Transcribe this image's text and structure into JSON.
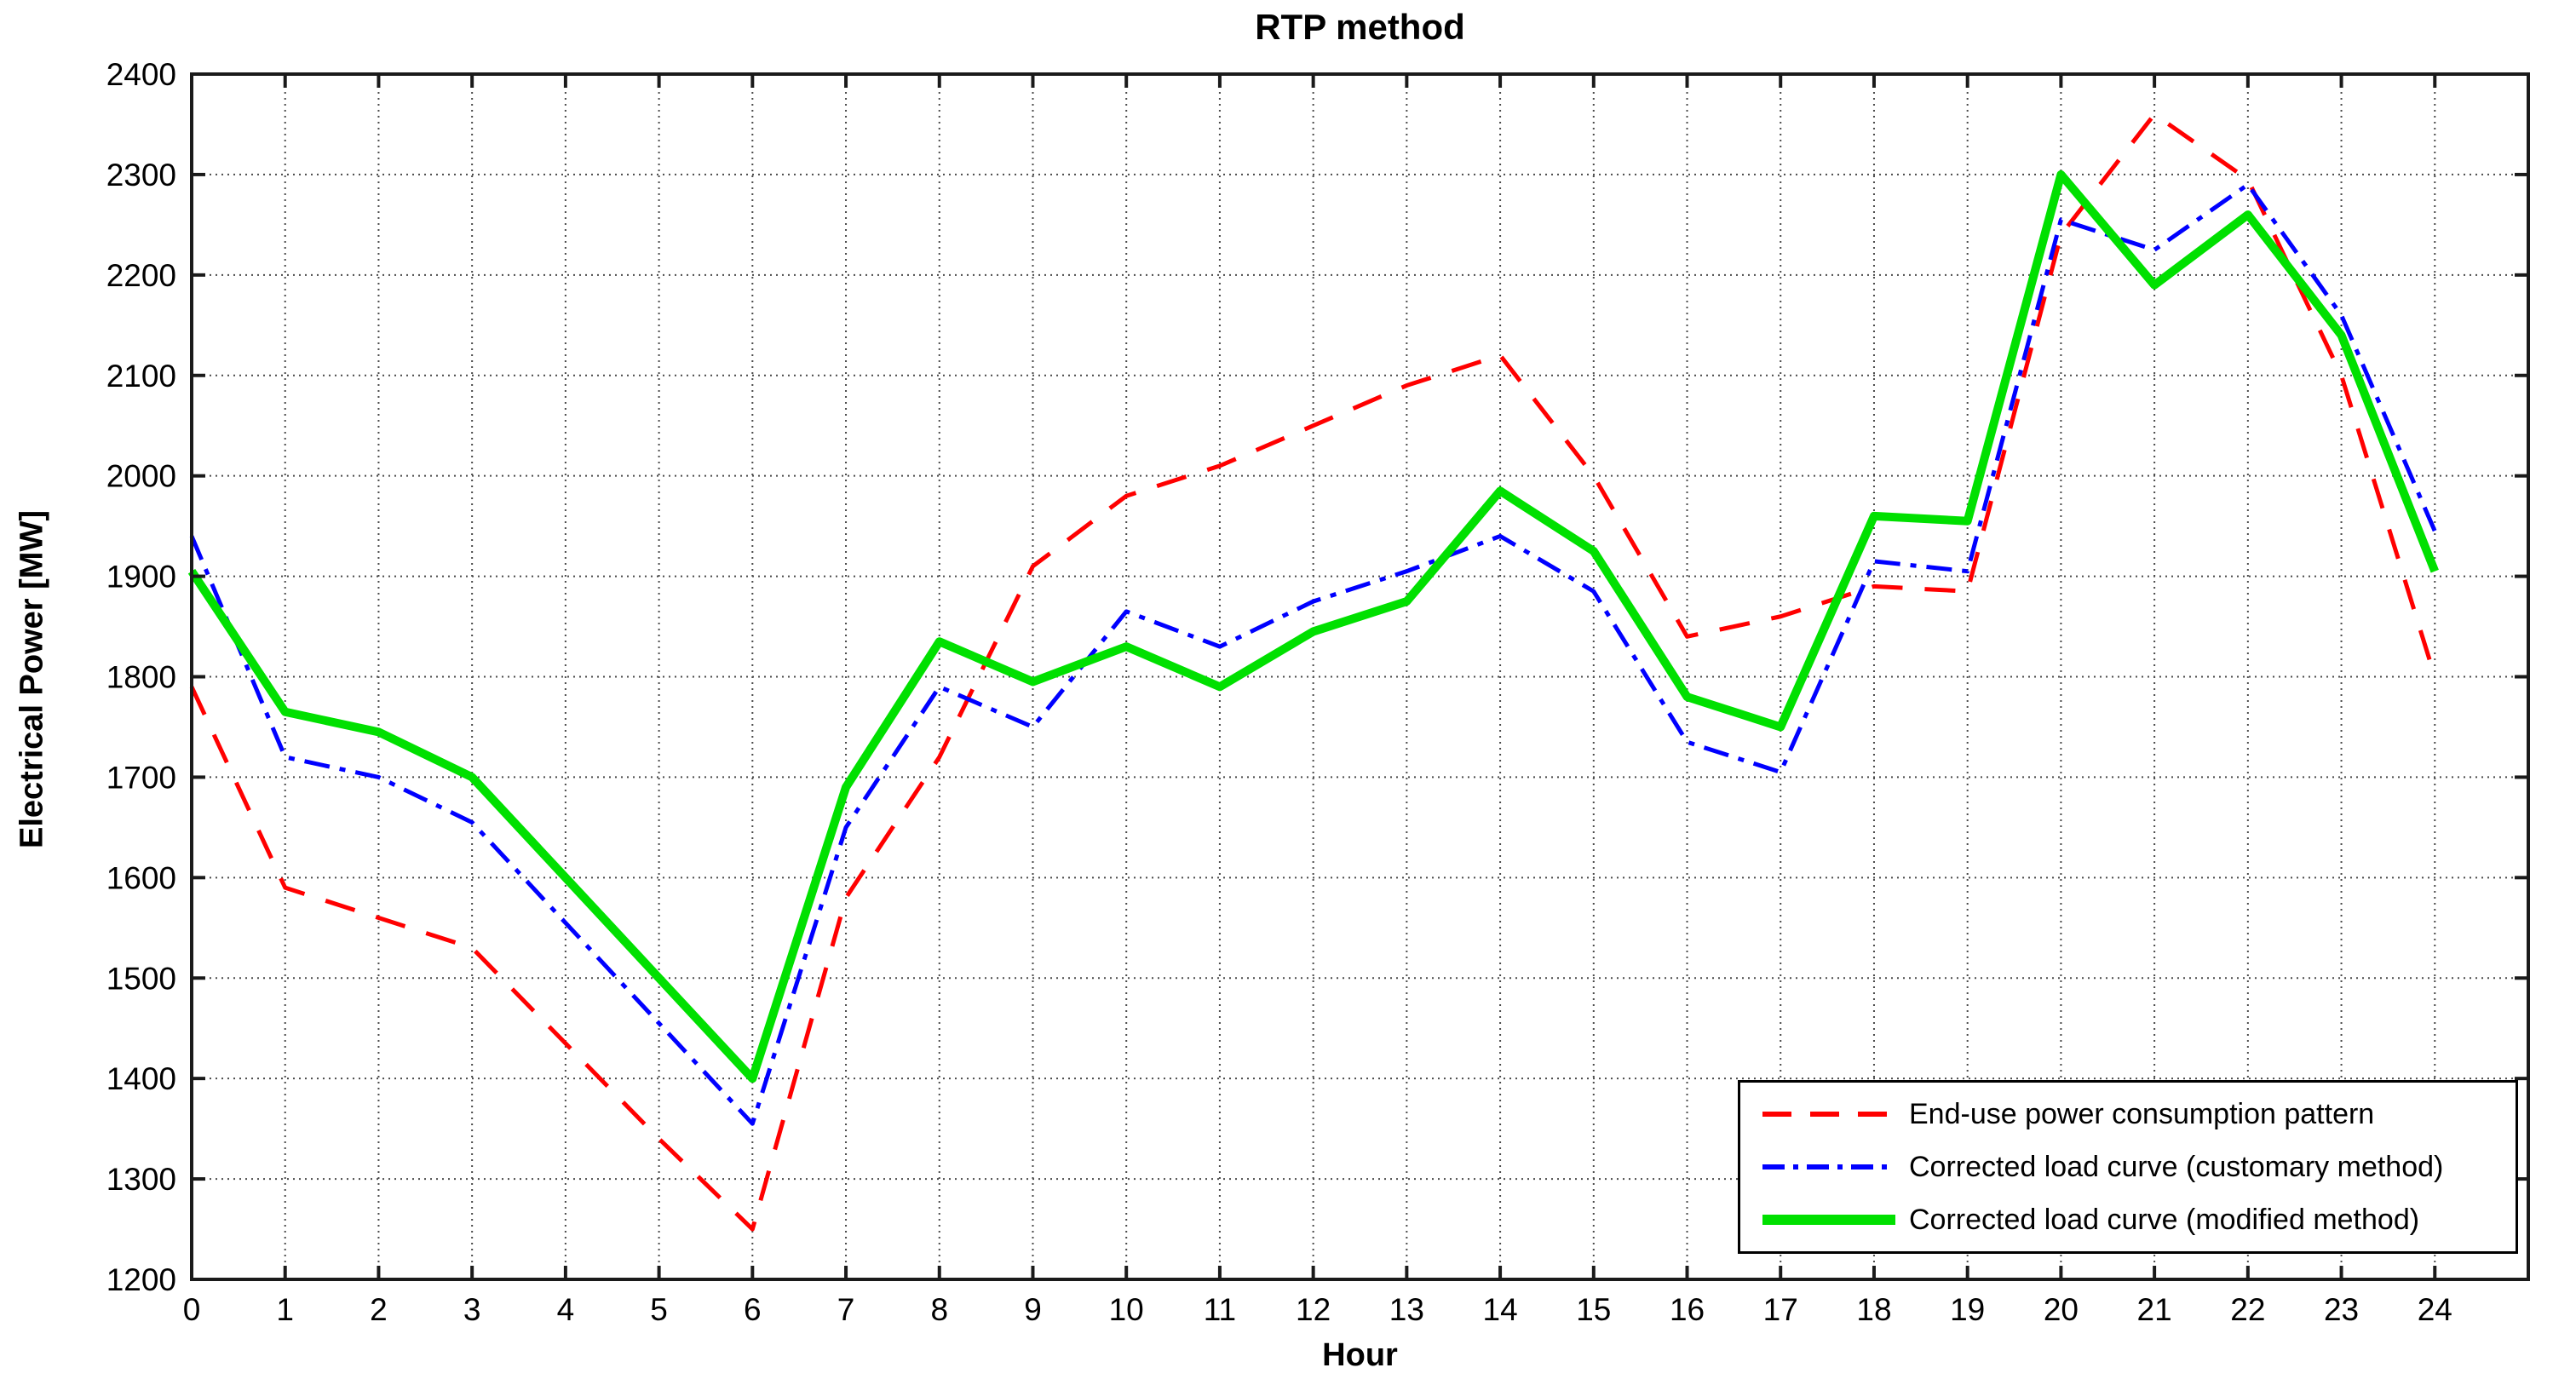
{
  "chart_data": {
    "type": "line",
    "title": "RTP method",
    "xlabel": "Hour",
    "ylabel": "Electrical Power [MW]",
    "xlim": [
      0,
      25
    ],
    "ylim": [
      1200,
      2400
    ],
    "xticks": [
      0,
      1,
      2,
      3,
      4,
      5,
      6,
      7,
      8,
      9,
      10,
      11,
      12,
      13,
      14,
      15,
      16,
      17,
      18,
      19,
      20,
      21,
      22,
      23,
      24
    ],
    "yticks": [
      1200,
      1300,
      1400,
      1500,
      1600,
      1700,
      1800,
      1900,
      2000,
      2100,
      2200,
      2300,
      2400
    ],
    "grid": "dotted",
    "legend_position": "bottom-right",
    "x": [
      0,
      1,
      2,
      3,
      4,
      5,
      6,
      7,
      8,
      9,
      10,
      11,
      12,
      13,
      14,
      15,
      16,
      17,
      18,
      19,
      20,
      21,
      22,
      23,
      24
    ],
    "series": [
      {
        "name": "End-use power consumption pattern",
        "color": "#FF0000",
        "style": "dashed",
        "width": 5,
        "dash": "36 26",
        "legend_dash": "34 22",
        "values": [
          1790,
          1590,
          1560,
          1530,
          1435,
          1340,
          1250,
          1580,
          1720,
          1910,
          1980,
          2010,
          2050,
          2090,
          2120,
          2000,
          1840,
          1860,
          1890,
          1885,
          2240,
          2360,
          2295,
          2100,
          1800
        ]
      },
      {
        "name": "Corrected load curve (customary method)",
        "color": "#0000FF",
        "style": "dash-dot",
        "width": 5,
        "dash": "30 12 7 12",
        "legend_dash": "26 10 6 10",
        "values": [
          1940,
          1720,
          1700,
          1655,
          1555,
          1455,
          1355,
          1650,
          1790,
          1750,
          1865,
          1830,
          1875,
          1905,
          1940,
          1885,
          1735,
          1705,
          1915,
          1905,
          2255,
          2225,
          2290,
          2160,
          1945
        ]
      },
      {
        "name": "Corrected load curve (modified method)",
        "color": "#00E000",
        "style": "solid",
        "width": 10,
        "dash": "",
        "legend_dash": "",
        "values": [
          1905,
          1765,
          1745,
          1700,
          1600,
          1500,
          1400,
          1690,
          1835,
          1795,
          1830,
          1790,
          1845,
          1875,
          1985,
          1925,
          1780,
          1750,
          1960,
          1955,
          2300,
          2190,
          2260,
          2140,
          1905
        ]
      }
    ]
  }
}
